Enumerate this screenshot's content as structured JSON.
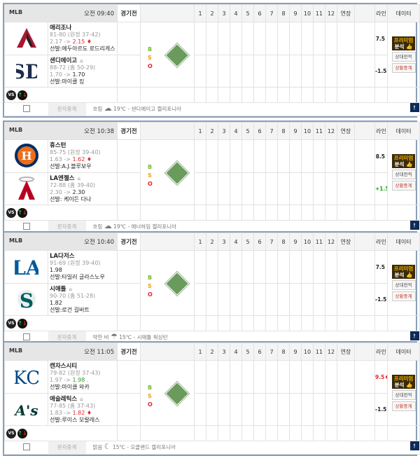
{
  "header": {
    "league": "MLB",
    "status": "경기전",
    "innings": [
      "1",
      "2",
      "3",
      "4",
      "5",
      "6",
      "7",
      "8",
      "9",
      "10",
      "11",
      "12",
      "연장"
    ],
    "line": "라인",
    "data": "데이터"
  },
  "bso": [
    "B",
    "S",
    "O"
  ],
  "buttons": {
    "premium_1": "프리미엄",
    "premium_2": "분석",
    "h2h": "상대전적",
    "live": "상황중계",
    "text_relay": "문자중계",
    "vs": "VS"
  },
  "games": [
    {
      "time": "오전 09:40",
      "away": {
        "name": "애리조나",
        "record": "81-80 (원정 37-42)",
        "odds_from": "2.17 ->",
        "odds_to": "2.15",
        "trend": "up",
        "pitcher": "선발:에두아르도 로드리게스",
        "line": "7.5",
        "logo": "arizona-logo"
      },
      "home": {
        "name": "샌디에이고",
        "record": "88-72 (홈 50-29)",
        "odds_from": "1.70 ->",
        "odds_to": "1.70",
        "trend": "none",
        "pitcher": "선발:마이클 킹",
        "line": "-1.5",
        "logo": "san-diego-logo"
      },
      "weather": "흐림",
      "weather_icon": "cloud-icon",
      "weather_detail": "19℃ - 샌디에이고 캘리포니아"
    },
    {
      "time": "오전 10:38",
      "away": {
        "name": "휴스턴",
        "record": "85-75 (원정 39-40)",
        "odds_from": "1.63 ->",
        "odds_to": "1.62",
        "trend": "up",
        "pitcher": "선발:A.J.블루보우",
        "line": "8.5",
        "logo": "houston-logo"
      },
      "home": {
        "name": "LA엔젤스",
        "record": "72-88 (홈 39-40)",
        "odds_from": "2.30 ->",
        "odds_to": "2.30",
        "trend": "none",
        "pitcher": "선발: 케이든 다나",
        "line": "+1.5",
        "line_trend": "down",
        "logo": "angels-logo"
      },
      "weather": "흐림",
      "weather_icon": "cloud-icon",
      "weather_detail": "19℃ - 애너하임 캘리포니아"
    },
    {
      "time": "오전 10:40",
      "away": {
        "name": "LA다저스",
        "record": "91-69 (원정 39-40)",
        "odds_from": "",
        "odds_to": "1.98",
        "trend": "plain",
        "pitcher": "선발:타일러 글라스노우",
        "line": "7.5",
        "logo": "dodgers-logo"
      },
      "home": {
        "name": "시애틀",
        "record": "90-70 (홈 51-28)",
        "odds_from": "",
        "odds_to": "1.82",
        "trend": "plain",
        "pitcher": "선발:로건 길버트",
        "line": "-1.5",
        "logo": "mariners-logo"
      },
      "weather": "약한 비",
      "weather_icon": "rain-icon",
      "weather_detail": "15℃ - 시애틀 워싱턴"
    },
    {
      "time": "오전 11:05",
      "away": {
        "name": "캔자스시티",
        "record": "79-82 (원정 37-43)",
        "odds_from": "1.97 ->",
        "odds_to": "1.98",
        "trend": "down",
        "pitcher": "선발:마이클 와카",
        "line": "9.5",
        "line_trend": "up",
        "logo": "royals-logo"
      },
      "home": {
        "name": "애슬레틱스",
        "record": "77-85 (홈 37-43)",
        "odds_from": "1.83 ->",
        "odds_to": "1.82",
        "trend": "up",
        "pitcher": "선발:루이스 모랄레스",
        "line": "-1.5",
        "logo": "athletics-logo"
      },
      "weather": "맑음",
      "weather_icon": "moon-icon",
      "weather_detail": "15℃ - 오클랜드 캘리포니아"
    }
  ],
  "colors": {
    "up": "#e6262e",
    "down": "#2a9a2a",
    "card_border": "#8b9fb8",
    "premium_bg": "#3a2a0a",
    "premium_text": "#f0b400",
    "top_button": "#0d2b5a",
    "field": "#6a9a5c"
  }
}
